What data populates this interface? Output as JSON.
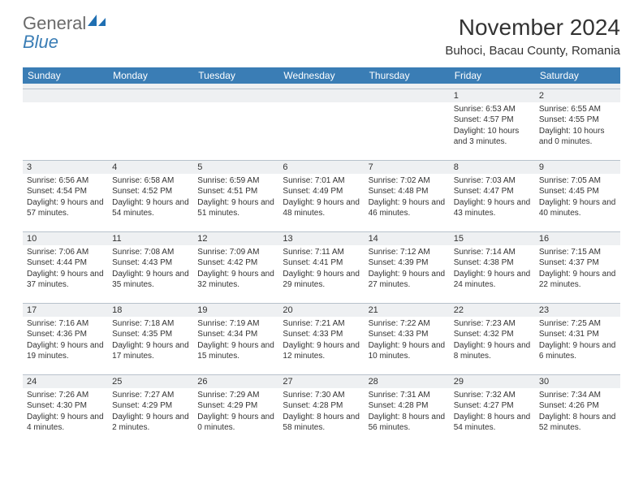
{
  "logo": {
    "textGeneral": "General",
    "textBlue": "Blue"
  },
  "title": "November 2024",
  "location": "Buhoci, Bacau County, Romania",
  "colors": {
    "headerBg": "#3a7db5",
    "headerText": "#ffffff",
    "dayNumBg": "#eef0f2",
    "border": "#b8c2cc",
    "text": "#333333",
    "logoGray": "#6a6a6a",
    "logoBlue": "#3a7db5"
  },
  "weekdays": [
    "Sunday",
    "Monday",
    "Tuesday",
    "Wednesday",
    "Thursday",
    "Friday",
    "Saturday"
  ],
  "startOffset": 5,
  "days": [
    {
      "n": "1",
      "sunrise": "6:53 AM",
      "sunset": "4:57 PM",
      "daylight": "10 hours and 3 minutes."
    },
    {
      "n": "2",
      "sunrise": "6:55 AM",
      "sunset": "4:55 PM",
      "daylight": "10 hours and 0 minutes."
    },
    {
      "n": "3",
      "sunrise": "6:56 AM",
      "sunset": "4:54 PM",
      "daylight": "9 hours and 57 minutes."
    },
    {
      "n": "4",
      "sunrise": "6:58 AM",
      "sunset": "4:52 PM",
      "daylight": "9 hours and 54 minutes."
    },
    {
      "n": "5",
      "sunrise": "6:59 AM",
      "sunset": "4:51 PM",
      "daylight": "9 hours and 51 minutes."
    },
    {
      "n": "6",
      "sunrise": "7:01 AM",
      "sunset": "4:49 PM",
      "daylight": "9 hours and 48 minutes."
    },
    {
      "n": "7",
      "sunrise": "7:02 AM",
      "sunset": "4:48 PM",
      "daylight": "9 hours and 46 minutes."
    },
    {
      "n": "8",
      "sunrise": "7:03 AM",
      "sunset": "4:47 PM",
      "daylight": "9 hours and 43 minutes."
    },
    {
      "n": "9",
      "sunrise": "7:05 AM",
      "sunset": "4:45 PM",
      "daylight": "9 hours and 40 minutes."
    },
    {
      "n": "10",
      "sunrise": "7:06 AM",
      "sunset": "4:44 PM",
      "daylight": "9 hours and 37 minutes."
    },
    {
      "n": "11",
      "sunrise": "7:08 AM",
      "sunset": "4:43 PM",
      "daylight": "9 hours and 35 minutes."
    },
    {
      "n": "12",
      "sunrise": "7:09 AM",
      "sunset": "4:42 PM",
      "daylight": "9 hours and 32 minutes."
    },
    {
      "n": "13",
      "sunrise": "7:11 AM",
      "sunset": "4:41 PM",
      "daylight": "9 hours and 29 minutes."
    },
    {
      "n": "14",
      "sunrise": "7:12 AM",
      "sunset": "4:39 PM",
      "daylight": "9 hours and 27 minutes."
    },
    {
      "n": "15",
      "sunrise": "7:14 AM",
      "sunset": "4:38 PM",
      "daylight": "9 hours and 24 minutes."
    },
    {
      "n": "16",
      "sunrise": "7:15 AM",
      "sunset": "4:37 PM",
      "daylight": "9 hours and 22 minutes."
    },
    {
      "n": "17",
      "sunrise": "7:16 AM",
      "sunset": "4:36 PM",
      "daylight": "9 hours and 19 minutes."
    },
    {
      "n": "18",
      "sunrise": "7:18 AM",
      "sunset": "4:35 PM",
      "daylight": "9 hours and 17 minutes."
    },
    {
      "n": "19",
      "sunrise": "7:19 AM",
      "sunset": "4:34 PM",
      "daylight": "9 hours and 15 minutes."
    },
    {
      "n": "20",
      "sunrise": "7:21 AM",
      "sunset": "4:33 PM",
      "daylight": "9 hours and 12 minutes."
    },
    {
      "n": "21",
      "sunrise": "7:22 AM",
      "sunset": "4:33 PM",
      "daylight": "9 hours and 10 minutes."
    },
    {
      "n": "22",
      "sunrise": "7:23 AM",
      "sunset": "4:32 PM",
      "daylight": "9 hours and 8 minutes."
    },
    {
      "n": "23",
      "sunrise": "7:25 AM",
      "sunset": "4:31 PM",
      "daylight": "9 hours and 6 minutes."
    },
    {
      "n": "24",
      "sunrise": "7:26 AM",
      "sunset": "4:30 PM",
      "daylight": "9 hours and 4 minutes."
    },
    {
      "n": "25",
      "sunrise": "7:27 AM",
      "sunset": "4:29 PM",
      "daylight": "9 hours and 2 minutes."
    },
    {
      "n": "26",
      "sunrise": "7:29 AM",
      "sunset": "4:29 PM",
      "daylight": "9 hours and 0 minutes."
    },
    {
      "n": "27",
      "sunrise": "7:30 AM",
      "sunset": "4:28 PM",
      "daylight": "8 hours and 58 minutes."
    },
    {
      "n": "28",
      "sunrise": "7:31 AM",
      "sunset": "4:28 PM",
      "daylight": "8 hours and 56 minutes."
    },
    {
      "n": "29",
      "sunrise": "7:32 AM",
      "sunset": "4:27 PM",
      "daylight": "8 hours and 54 minutes."
    },
    {
      "n": "30",
      "sunrise": "7:34 AM",
      "sunset": "4:26 PM",
      "daylight": "8 hours and 52 minutes."
    }
  ],
  "labels": {
    "sunrise": "Sunrise:",
    "sunset": "Sunset:",
    "daylight": "Daylight:"
  }
}
